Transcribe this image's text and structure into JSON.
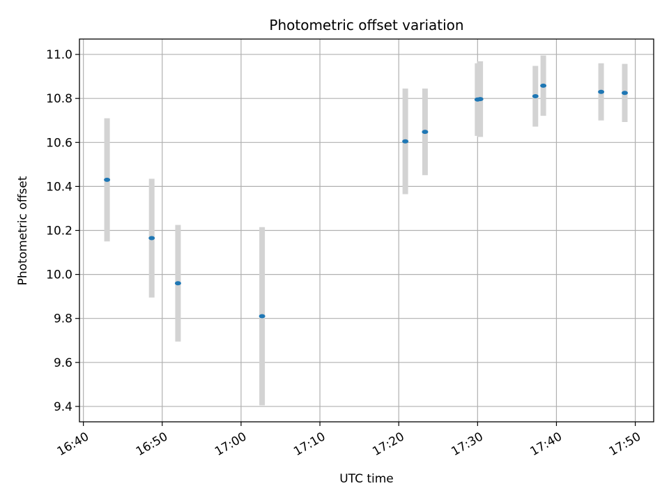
{
  "chart_data": {
    "type": "scatter",
    "title": "Photometric offset variation",
    "xlabel": "UTC time",
    "ylabel": "Photometric offset",
    "x_axis_type": "time",
    "xlim": [
      "16:39:30",
      "17:52:20"
    ],
    "ylim": [
      9.33,
      11.07
    ],
    "xticks": [
      "16:40",
      "16:50",
      "17:00",
      "17:10",
      "17:20",
      "17:30",
      "17:40",
      "17:50"
    ],
    "yticks": [
      9.4,
      9.6,
      9.8,
      10.0,
      10.2,
      10.4,
      10.6,
      10.8,
      11.0
    ],
    "grid": true,
    "point_color": "#1f77b4",
    "errorbar_color": "#d3d3d3",
    "series": [
      {
        "points": [
          {
            "x": "16:43:00",
            "y": 10.43,
            "err": 0.28
          },
          {
            "x": "16:48:40",
            "y": 10.165,
            "err": 0.27
          },
          {
            "x": "16:52:00",
            "y": 9.96,
            "err": 0.265
          },
          {
            "x": "17:02:40",
            "y": 9.81,
            "err": 0.405
          },
          {
            "x": "17:20:50",
            "y": 10.605,
            "err": 0.24
          },
          {
            "x": "17:23:20",
            "y": 10.648,
            "err": 0.197
          },
          {
            "x": "17:30:00",
            "y": 10.795,
            "err": 0.165
          },
          {
            "x": "17:30:20",
            "y": 10.797,
            "err": 0.172
          },
          {
            "x": "17:37:20",
            "y": 10.81,
            "err": 0.138
          },
          {
            "x": "17:38:20",
            "y": 10.858,
            "err": 0.137
          },
          {
            "x": "17:45:40",
            "y": 10.83,
            "err": 0.13
          },
          {
            "x": "17:48:40",
            "y": 10.825,
            "err": 0.132
          }
        ]
      }
    ]
  }
}
